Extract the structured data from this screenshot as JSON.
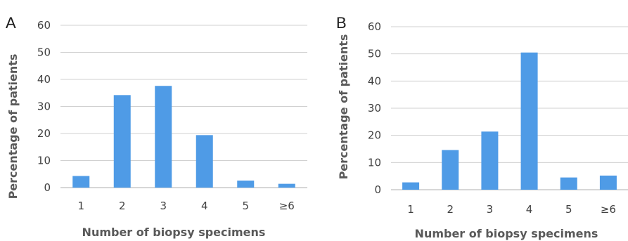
{
  "chart_data": [
    {
      "panel": "A",
      "type": "bar",
      "categories": [
        "1",
        "2",
        "3",
        "4",
        "5",
        "≥6"
      ],
      "values": [
        4.3,
        34.2,
        37.6,
        19.4,
        2.6,
        1.4
      ],
      "xlabel": "Number of biopsy specimens",
      "ylabel": "Percentage of patients",
      "ylim": [
        0,
        60
      ],
      "yticks": [
        "0",
        "10",
        "20",
        "30",
        "40",
        "50",
        "60"
      ],
      "grid": true,
      "bar_color": "#4f9be6"
    },
    {
      "panel": "B",
      "type": "bar",
      "categories": [
        "1",
        "2",
        "3",
        "4",
        "5",
        "≥6"
      ],
      "values": [
        2.7,
        14.6,
        21.4,
        50.5,
        4.5,
        5.2
      ],
      "xlabel": "Number of biopsy specimens",
      "ylabel": "Percentage of patients",
      "ylim": [
        0,
        60
      ],
      "yticks": [
        "0",
        "10",
        "20",
        "30",
        "40",
        "50",
        "60"
      ],
      "grid": true,
      "bar_color": "#4f9be6"
    }
  ]
}
